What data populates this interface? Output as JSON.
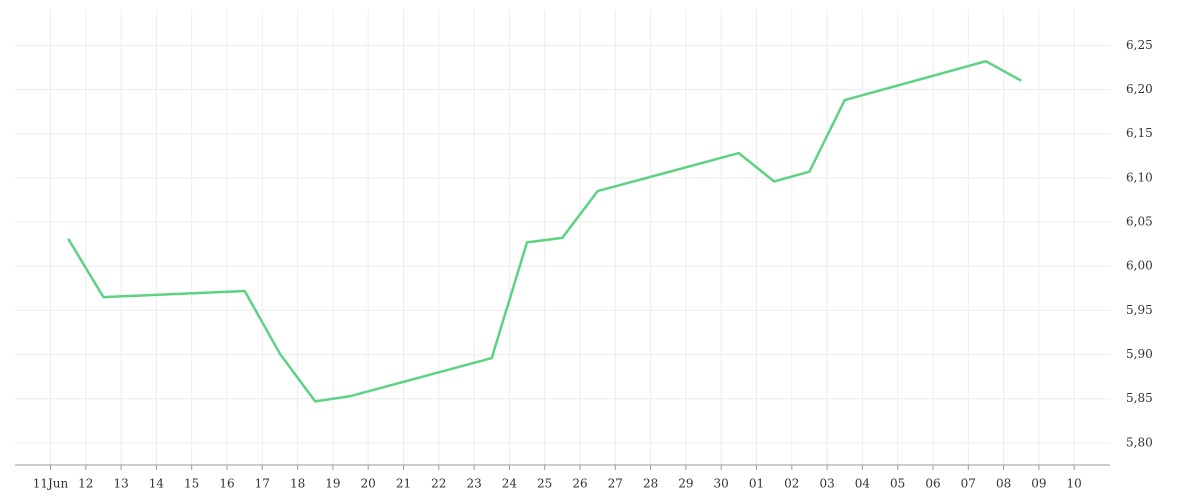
{
  "chart_data": {
    "type": "line",
    "categories": [
      "11Jun",
      "12",
      "13",
      "14",
      "15",
      "16",
      "17",
      "18",
      "19",
      "20",
      "21",
      "22",
      "23",
      "24",
      "25",
      "26",
      "27",
      "28",
      "29",
      "30",
      "01",
      "02",
      "03",
      "04",
      "05",
      "06",
      "07",
      "08",
      "09",
      "10"
    ],
    "series": [
      {
        "color": "#5cd383",
        "x": [
          "11Jun",
          "12",
          "16",
          "17",
          "18",
          "19",
          "23",
          "24",
          "25",
          "26",
          "30",
          "01",
          "02",
          "03",
          "07",
          "08"
        ],
        "values": [
          6.031,
          5.965,
          5.972,
          5.901,
          5.847,
          5.853,
          5.896,
          6.027,
          6.032,
          6.085,
          6.128,
          6.096,
          6.107,
          6.188,
          6.232,
          6.21
        ]
      }
    ],
    "ylim": [
      5.775,
      6.29
    ],
    "yticks": [
      {
        "value": 5.8,
        "label": "5,80"
      },
      {
        "value": 5.85,
        "label": "5,85"
      },
      {
        "value": 5.9,
        "label": "5,90"
      },
      {
        "value": 5.95,
        "label": "5,95"
      },
      {
        "value": 6.0,
        "label": "6,00"
      },
      {
        "value": 6.05,
        "label": "6,05"
      },
      {
        "value": 6.1,
        "label": "6,10"
      },
      {
        "value": 6.15,
        "label": "6,15"
      },
      {
        "value": 6.2,
        "label": "6,20"
      },
      {
        "value": 6.25,
        "label": "6,25"
      }
    ],
    "grid": true
  }
}
